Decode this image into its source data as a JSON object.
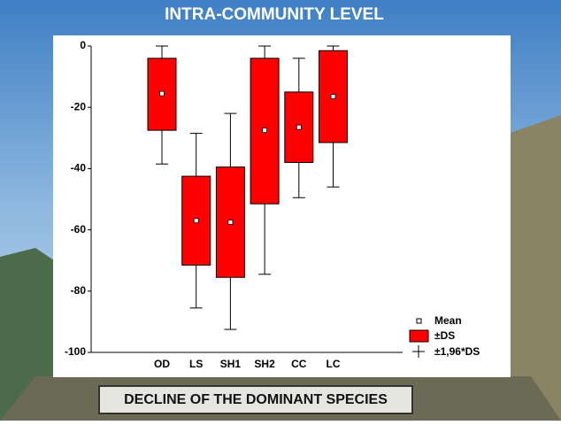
{
  "chart_data": {
    "type": "box",
    "title": "INTRA-COMMUNITY LEVEL",
    "banner": "DECLINE OF THE DOMINANT SPECIES",
    "categories": [
      "OD",
      "LS",
      "SH1",
      "SH2",
      "CC",
      "LC"
    ],
    "mean": [
      -15.5,
      -57,
      -57.5,
      -27.5,
      -26.5,
      -16.5
    ],
    "sd_high": [
      -4,
      -42.5,
      -39.5,
      -4,
      -15,
      -1.5
    ],
    "sd_low": [
      -27.5,
      -71.5,
      -75.5,
      -51.5,
      -38,
      -31.5
    ],
    "ci_high": [
      0,
      -28.5,
      -22,
      0,
      -4,
      0
    ],
    "ci_low": [
      -38.5,
      -85.5,
      -92.5,
      -74.5,
      -49.5,
      -46
    ],
    "legend": {
      "mean": "Mean",
      "sd": "±DS",
      "ci": "±1,96*DS"
    },
    "color": "#ff0000",
    "ylim": [
      -100,
      0
    ],
    "yticks": [
      0,
      -20,
      -40,
      -60,
      -80,
      -100
    ]
  }
}
